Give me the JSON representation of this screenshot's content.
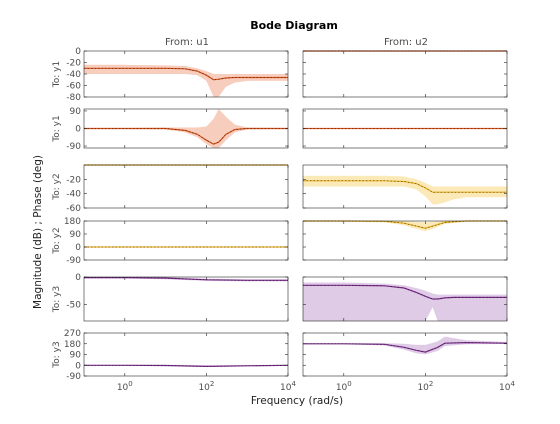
{
  "chart_data": {
    "type": "line",
    "title": "Bode Diagram",
    "xlabel": "Frequency  (rad/s)",
    "ylabel": "Magnitude (dB) ; Phase (deg)",
    "x_scale": "log",
    "xlim": [
      0.1,
      10000
    ],
    "x_ticks": [
      1,
      100,
      10000
    ],
    "x_tick_labels": [
      {
        "base": "10",
        "exp": "0"
      },
      {
        "base": "10",
        "exp": "2"
      },
      {
        "base": "10",
        "exp": "4"
      }
    ],
    "columns": [
      {
        "label": "From: u1",
        "color": "#d95319",
        "band": "#f5cdbd"
      },
      {
        "label": "From: u2",
        "color": "#d95319",
        "band": "#f5cdbd"
      }
    ],
    "panels": [
      {
        "row_label": "To: y1",
        "kind": "magnitude",
        "ylim": [
          -80,
          0
        ],
        "yticks": [
          0,
          -20,
          -40,
          -60,
          -80
        ],
        "ytick_labels": [
          "0",
          "-20",
          "-40",
          "-60",
          "-80"
        ],
        "color": "#d95319",
        "band_color": "#f7cebe",
        "u1": {
          "x": [
            0.1,
            1,
            10,
            30,
            60,
            100,
            150,
            200,
            300,
            500,
            1000,
            10000
          ],
          "y": [
            -30,
            -30,
            -30,
            -31,
            -35,
            -42,
            -50,
            -49,
            -47,
            -46,
            -46,
            -46
          ],
          "lower": [
            -40,
            -40,
            -40,
            -40,
            -42,
            -52,
            -80,
            -80,
            -62,
            -55,
            -52,
            -52
          ],
          "upper": [
            -24,
            -24,
            -25,
            -26,
            -30,
            -35,
            -40,
            -40,
            -40,
            -40,
            -40,
            -40
          ]
        },
        "u2": {
          "x": [
            0.1,
            10000
          ],
          "y": [
            0,
            0
          ],
          "lower": [
            -1,
            -1
          ],
          "upper": [
            0,
            0
          ]
        }
      },
      {
        "row_label": "To: y1",
        "kind": "phase",
        "ylim": [
          -100,
          100
        ],
        "yticks": [
          90,
          0,
          -90
        ],
        "ytick_labels": [
          "90",
          "0",
          "-90"
        ],
        "color": "#d95319",
        "band_color": "#f7cebe",
        "u1": {
          "x": [
            0.1,
            1,
            10,
            30,
            60,
            100,
            150,
            200,
            300,
            500,
            1000,
            10000
          ],
          "y": [
            0,
            0,
            0,
            -10,
            -30,
            -60,
            -80,
            -70,
            -30,
            -5,
            0,
            0
          ],
          "lower": [
            -3,
            -3,
            -5,
            -20,
            -45,
            -80,
            -100,
            -100,
            -60,
            -20,
            -5,
            -3
          ],
          "upper": [
            3,
            3,
            5,
            5,
            5,
            10,
            50,
            100,
            60,
            20,
            5,
            3
          ]
        },
        "u2": {
          "x": [
            0.1,
            10000
          ],
          "y": [
            0,
            0
          ],
          "lower": [
            -2,
            -2
          ],
          "upper": [
            2,
            2
          ]
        }
      },
      {
        "row_label": "To: y2",
        "kind": "magnitude",
        "ylim": [
          -60,
          0
        ],
        "yticks": [
          -20,
          -40,
          -60
        ],
        "ytick_labels": [
          "-20",
          "-40",
          "-60"
        ],
        "color": "#edb120",
        "band_color": "#fbe9b8",
        "u1": {
          "x": [
            0.1,
            10000
          ],
          "y": [
            0,
            0
          ],
          "lower": [
            -1,
            -1
          ],
          "upper": [
            0,
            0
          ]
        },
        "u2": {
          "x": [
            0.1,
            1,
            10,
            30,
            60,
            100,
            150,
            200,
            300,
            500,
            1000,
            10000
          ],
          "y": [
            -22,
            -22,
            -22,
            -23,
            -26,
            -32,
            -38,
            -38,
            -38,
            -38,
            -38,
            -38
          ],
          "lower": [
            -30,
            -30,
            -30,
            -30,
            -34,
            -44,
            -55,
            -55,
            -52,
            -48,
            -45,
            -45
          ],
          "upper": [
            -15,
            -15,
            -15,
            -16,
            -20,
            -25,
            -30,
            -30,
            -30,
            -30,
            -30,
            -30
          ]
        }
      },
      {
        "row_label": "To: y2",
        "kind": "phase",
        "ylim": [
          -90,
          180
        ],
        "yticks": [
          180,
          90,
          0,
          -90
        ],
        "ytick_labels": [
          "180",
          "90",
          "0",
          "-90"
        ],
        "color": "#edb120",
        "band_color": "#fbe9b8",
        "u1": {
          "x": [
            0.1,
            10000
          ],
          "y": [
            0,
            0
          ],
          "lower": [
            -1,
            -1
          ],
          "upper": [
            1,
            1
          ]
        },
        "u2": {
          "x": [
            0.1,
            1,
            10,
            30,
            60,
            100,
            150,
            300,
            1000,
            10000
          ],
          "y": [
            180,
            180,
            178,
            165,
            145,
            130,
            145,
            170,
            180,
            180
          ],
          "lower": [
            175,
            175,
            170,
            150,
            125,
            110,
            125,
            160,
            175,
            178
          ],
          "upper": [
            185,
            185,
            184,
            180,
            175,
            170,
            175,
            182,
            184,
            182
          ]
        }
      },
      {
        "row_label": "To: y3",
        "kind": "magnitude",
        "ylim": [
          -80,
          0
        ],
        "yticks": [
          0,
          -50
        ],
        "ytick_labels": [
          "0",
          "-50"
        ],
        "color": "#7e2f8e",
        "band_color": "#dfcbe6",
        "u1": {
          "x": [
            0.1,
            1,
            10,
            100,
            1000,
            10000
          ],
          "y": [
            -1,
            -1,
            -2,
            -5,
            -6,
            -6
          ],
          "lower": [
            -3,
            -3,
            -4,
            -7,
            -8,
            -8
          ],
          "upper": [
            0,
            0,
            0,
            -3,
            -4,
            -4
          ]
        },
        "u2": {
          "x": [
            0.1,
            1,
            10,
            30,
            60,
            100,
            150,
            200,
            300,
            500,
            1000,
            10000
          ],
          "y": [
            -15,
            -15,
            -16,
            -20,
            -28,
            -35,
            -40,
            -40,
            -38,
            -37,
            -37,
            -37
          ],
          "lower": [
            -80,
            -80,
            -80,
            -80,
            -80,
            -80,
            -55,
            -80,
            -80,
            -80,
            -80,
            -80
          ],
          "upper": [
            -10,
            -10,
            -12,
            -15,
            -20,
            -25,
            -30,
            -32,
            -32,
            -32,
            -32,
            -32
          ]
        }
      },
      {
        "row_label": "To: y3",
        "kind": "phase",
        "ylim": [
          -90,
          270
        ],
        "yticks": [
          270,
          180,
          90,
          0,
          -90
        ],
        "ytick_labels": [
          "270",
          "180",
          "90",
          "0",
          "-90"
        ],
        "color": "#7e2f8e",
        "band_color": "#dfcbe6",
        "u1": {
          "x": [
            0.1,
            1,
            10,
            100,
            1000,
            10000
          ],
          "y": [
            0,
            0,
            -2,
            -10,
            -5,
            0
          ],
          "lower": [
            -5,
            -5,
            -8,
            -15,
            -10,
            -5
          ],
          "upper": [
            5,
            5,
            5,
            0,
            2,
            5
          ]
        },
        "u2": {
          "x": [
            0.1,
            1,
            10,
            30,
            60,
            100,
            200,
            300,
            1000,
            10000
          ],
          "y": [
            180,
            180,
            175,
            150,
            125,
            110,
            150,
            185,
            190,
            185
          ],
          "lower": [
            175,
            175,
            165,
            130,
            100,
            90,
            120,
            160,
            175,
            178
          ],
          "upper": [
            185,
            185,
            185,
            180,
            170,
            170,
            200,
            240,
            210,
            195
          ]
        }
      }
    ]
  }
}
